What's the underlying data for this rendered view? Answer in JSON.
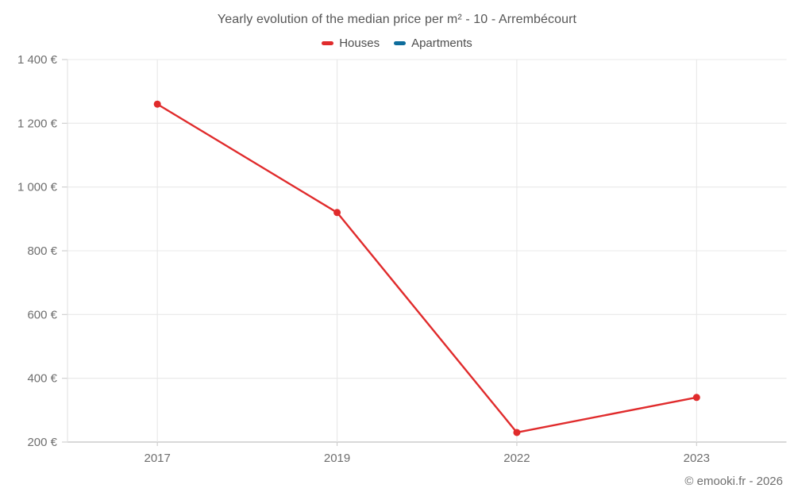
{
  "header": {
    "title": "Yearly evolution of the median price per m² - 10 - Arrembécourt"
  },
  "legend": {
    "items": [
      {
        "label": "Houses",
        "color": "#e02b2c"
      },
      {
        "label": "Apartments",
        "color": "#0e6d9c"
      }
    ]
  },
  "footer": {
    "credit": "© emooki.fr - 2026"
  },
  "chart_data": {
    "type": "line",
    "title": "Yearly evolution of the median price per m² - 10 - Arrembécourt",
    "categories": [
      "2017",
      "2019",
      "2022",
      "2023"
    ],
    "series": [
      {
        "name": "Houses",
        "color": "#e02b2c",
        "values": [
          1260,
          920,
          230,
          340
        ]
      },
      {
        "name": "Apartments",
        "color": "#0e6d9c",
        "values": []
      }
    ],
    "xlabel": "",
    "ylabel": "",
    "ylim": [
      200,
      1400
    ],
    "yticks": [
      200,
      400,
      600,
      800,
      1000,
      1200,
      1400
    ],
    "ytick_labels": [
      "200 €",
      "400 €",
      "600 €",
      "800 €",
      "1 000 €",
      "1 200 €",
      "1 400 €"
    ],
    "grid": true,
    "legend_position": "top",
    "colors": {
      "grid_line": "#e8e8e8",
      "axis_line": "#cccccc",
      "left_axis_line": "#e2e2e2",
      "tick_mark": "#cccccc",
      "tick_label": "#6e6e6e"
    }
  }
}
